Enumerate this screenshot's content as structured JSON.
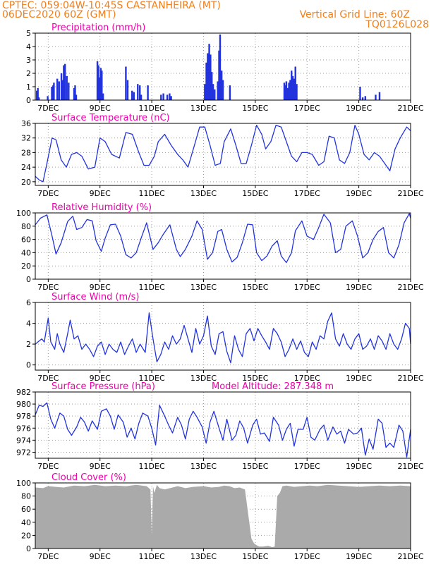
{
  "header": {
    "line1": "CPTEC:   059:04W-10:45S   CASTANHEIRA (MT)",
    "line2": "06DEC2020 60Z (GMT)",
    "grid_note": "Vertical Grid Line: 60Z",
    "run_id": "TQ0126L028"
  },
  "colors": {
    "header": "#f07f1e",
    "title": "#ee00aa",
    "line": "#2233dd",
    "bar": "#2233dd",
    "cloud": "#aaaaaa"
  },
  "chart_data": [
    {
      "type": "bar",
      "title": "Precipitation (mm/h)",
      "x_range": [
        6.5,
        21.0
      ],
      "ylim": [
        0,
        5
      ],
      "yticks": [
        0,
        1,
        2,
        3,
        4,
        5
      ],
      "xticks": [
        7,
        9,
        11,
        13,
        15,
        17,
        19,
        21
      ],
      "xtick_labels": [
        "7DEC",
        "9DEC",
        "11DEC",
        "13DEC",
        "15DEC",
        "17DEC",
        "19DEC",
        "21DEC"
      ],
      "grid": true,
      "x": [
        6.56,
        6.6,
        6.64,
        6.98,
        7.14,
        7.19,
        7.22,
        7.35,
        7.42,
        7.51,
        7.56,
        7.6,
        7.65,
        7.72,
        7.79,
        8.0,
        8.04,
        8.08,
        8.9,
        8.94,
        8.99,
        9.03,
        9.07,
        9.12,
        10.0,
        10.07,
        10.24,
        10.31,
        10.46,
        10.54,
        10.59,
        10.85,
        11.36,
        11.45,
        11.6,
        11.69,
        11.75,
        13.05,
        13.11,
        13.16,
        13.22,
        13.27,
        13.32,
        13.37,
        13.43,
        13.55,
        13.6,
        13.64,
        13.7,
        13.75,
        14.02,
        16.12,
        16.17,
        16.2,
        16.25,
        16.3,
        16.35,
        16.4,
        16.45,
        16.5,
        16.55,
        16.6,
        19.05,
        19.15,
        19.25,
        19.65,
        19.8
      ],
      "values": [
        0.7,
        0.9,
        0.2,
        0.3,
        1.0,
        1.1,
        1.3,
        1.6,
        1.4,
        2.0,
        1.5,
        2.6,
        2.7,
        1.8,
        1.3,
        0.9,
        1.1,
        0.4,
        2.9,
        2.6,
        1.7,
        2.4,
        2.2,
        0.5,
        2.5,
        1.5,
        0.7,
        0.6,
        1.2,
        1.1,
        0.4,
        1.1,
        0.4,
        0.5,
        0.4,
        0.5,
        0.3,
        1.2,
        2.8,
        3.5,
        4.2,
        3.4,
        2.1,
        1.2,
        0.8,
        1.4,
        3.7,
        4.9,
        2.2,
        1.5,
        1.1,
        1.3,
        1.1,
        1.4,
        0.9,
        1.3,
        1.5,
        2.2,
        1.8,
        1.6,
        2.5,
        1.2,
        1.0,
        0.2,
        0.3,
        0.4,
        0.6
      ]
    },
    {
      "type": "line",
      "title": "Surface Temperature (nC)",
      "x_range": [
        6.5,
        21.0
      ],
      "ylim": [
        19,
        36
      ],
      "yticks": [
        20,
        24,
        28,
        32,
        36
      ],
      "xticks": [
        7,
        9,
        11,
        13,
        15,
        17,
        19,
        21
      ],
      "xtick_labels": [
        "7DEC",
        "9DEC",
        "11DEC",
        "13DEC",
        "15DEC",
        "17DEC",
        "19DEC",
        "21DEC"
      ],
      "grid": true,
      "x": [
        6.5,
        6.65,
        6.8,
        6.95,
        7.15,
        7.3,
        7.5,
        7.7,
        7.9,
        8.1,
        8.3,
        8.55,
        8.8,
        9.0,
        9.2,
        9.45,
        9.75,
        10.0,
        10.25,
        10.5,
        10.7,
        10.9,
        11.1,
        11.25,
        11.5,
        11.75,
        12.0,
        12.2,
        12.4,
        12.65,
        12.85,
        13.05,
        13.25,
        13.45,
        13.65,
        13.8,
        14.05,
        14.25,
        14.45,
        14.65,
        14.85,
        15.05,
        15.25,
        15.4,
        15.6,
        15.8,
        16.0,
        16.2,
        16.4,
        16.6,
        16.8,
        17.0,
        17.2,
        17.45,
        17.65,
        17.85,
        18.05,
        18.25,
        18.45,
        18.65,
        18.85,
        19.0,
        19.2,
        19.4,
        19.6,
        19.8,
        20.0,
        20.2,
        20.4,
        20.6,
        20.85,
        21.0
      ],
      "values": [
        21.5,
        20.5,
        20.0,
        25.0,
        32.0,
        31.5,
        26.0,
        24.0,
        27.5,
        28.0,
        27.0,
        23.5,
        24.0,
        32.0,
        31.0,
        27.5,
        26.5,
        33.5,
        33.0,
        28.0,
        24.5,
        24.5,
        27.0,
        31.0,
        33.0,
        30.0,
        27.5,
        26.0,
        24.0,
        30.0,
        35.0,
        35.0,
        30.0,
        24.5,
        25.0,
        31.0,
        34.5,
        30.0,
        25.0,
        25.0,
        30.0,
        35.5,
        33.0,
        29.0,
        31.0,
        35.5,
        35.0,
        31.0,
        27.0,
        25.5,
        28.0,
        28.0,
        27.5,
        24.5,
        25.5,
        32.5,
        32.0,
        26.0,
        25.0,
        28.0,
        35.5,
        33.0,
        27.5,
        26.0,
        28.0,
        27.0,
        25.0,
        23.0,
        29.0,
        32.0,
        35.0,
        34.0
      ]
    },
    {
      "type": "line",
      "title": "Relative Humidity (%)",
      "x_range": [
        6.5,
        21.0
      ],
      "ylim": [
        0,
        100
      ],
      "yticks": [
        0,
        20,
        40,
        60,
        80,
        100
      ],
      "xticks": [
        7,
        9,
        11,
        13,
        15,
        17,
        19,
        21
      ],
      "xtick_labels": [
        "7DEC",
        "9DEC",
        "11DEC",
        "13DEC",
        "15DEC",
        "17DEC",
        "19DEC",
        "21DEC"
      ],
      "grid": true,
      "x": [
        6.5,
        6.7,
        6.95,
        7.15,
        7.3,
        7.5,
        7.75,
        7.95,
        8.1,
        8.3,
        8.5,
        8.7,
        8.85,
        9.05,
        9.2,
        9.4,
        9.6,
        9.8,
        10.0,
        10.2,
        10.4,
        10.6,
        10.8,
        11.05,
        11.25,
        11.45,
        11.7,
        11.95,
        12.1,
        12.3,
        12.55,
        12.75,
        12.95,
        13.15,
        13.35,
        13.55,
        13.7,
        13.9,
        14.1,
        14.3,
        14.5,
        14.7,
        14.9,
        15.05,
        15.25,
        15.45,
        15.65,
        15.85,
        16.0,
        16.2,
        16.4,
        16.55,
        16.8,
        17.0,
        17.25,
        17.45,
        17.65,
        17.9,
        18.1,
        18.3,
        18.5,
        18.75,
        18.95,
        19.15,
        19.35,
        19.55,
        19.75,
        19.95,
        20.15,
        20.35,
        20.55,
        20.75,
        20.95,
        21.0
      ],
      "values": [
        82,
        92,
        97,
        65,
        38,
        55,
        87,
        95,
        75,
        78,
        90,
        88,
        58,
        42,
        62,
        82,
        83,
        65,
        37,
        32,
        40,
        63,
        85,
        45,
        55,
        68,
        82,
        45,
        34,
        45,
        65,
        88,
        75,
        30,
        40,
        72,
        75,
        45,
        26,
        33,
        55,
        83,
        82,
        40,
        28,
        35,
        50,
        58,
        35,
        25,
        40,
        73,
        88,
        65,
        60,
        78,
        98,
        85,
        40,
        45,
        80,
        88,
        65,
        32,
        40,
        60,
        72,
        78,
        40,
        32,
        52,
        85,
        99,
        92
      ]
    },
    {
      "type": "line",
      "title": "Surface Wind (m/s)",
      "x_range": [
        6.5,
        21.0
      ],
      "ylim": [
        -0.5,
        6
      ],
      "yticks": [
        0,
        2,
        4,
        6
      ],
      "xticks": [
        7,
        9,
        11,
        13,
        15,
        17,
        19,
        21
      ],
      "xtick_labels": [
        "7DEC",
        "9DEC",
        "11DEC",
        "13DEC",
        "15DEC",
        "17DEC",
        "19DEC",
        "21DEC"
      ],
      "grid": true,
      "x": [
        6.5,
        6.65,
        6.75,
        6.85,
        7.0,
        7.1,
        7.25,
        7.35,
        7.45,
        7.6,
        7.75,
        7.85,
        8.0,
        8.15,
        8.3,
        8.45,
        8.6,
        8.75,
        8.9,
        9.05,
        9.2,
        9.35,
        9.5,
        9.65,
        9.8,
        9.95,
        10.1,
        10.25,
        10.4,
        10.55,
        10.75,
        10.9,
        11.05,
        11.2,
        11.35,
        11.5,
        11.65,
        11.8,
        11.95,
        12.1,
        12.25,
        12.4,
        12.55,
        12.7,
        12.85,
        13.0,
        13.15,
        13.3,
        13.45,
        13.6,
        13.75,
        13.9,
        14.05,
        14.2,
        14.35,
        14.5,
        14.65,
        14.8,
        14.95,
        15.1,
        15.25,
        15.4,
        15.55,
        15.7,
        15.85,
        16.0,
        16.15,
        16.3,
        16.45,
        16.6,
        16.75,
        16.9,
        17.05,
        17.2,
        17.35,
        17.5,
        17.65,
        17.8,
        17.95,
        18.1,
        18.25,
        18.4,
        18.55,
        18.7,
        18.85,
        19.0,
        19.15,
        19.3,
        19.45,
        19.6,
        19.75,
        19.9,
        20.05,
        20.2,
        20.35,
        20.5,
        20.65,
        20.8,
        20.95,
        21.0
      ],
      "values": [
        2.0,
        2.3,
        2.5,
        2.2,
        4.5,
        2.2,
        1.5,
        3.0,
        2.0,
        1.2,
        3.0,
        4.3,
        2.5,
        2.8,
        1.5,
        2.0,
        1.5,
        0.8,
        1.8,
        2.2,
        1.0,
        2.0,
        1.5,
        1.2,
        2.2,
        1.0,
        1.8,
        2.5,
        1.2,
        2.0,
        1.2,
        5.0,
        2.5,
        0.3,
        1.0,
        2.2,
        1.5,
        2.8,
        2.0,
        2.5,
        3.8,
        2.5,
        1.2,
        3.5,
        2.0,
        2.8,
        4.7,
        1.8,
        1.0,
        3.0,
        3.2,
        1.3,
        0.2,
        2.8,
        1.5,
        0.8,
        3.0,
        3.5,
        2.3,
        3.5,
        2.8,
        2.2,
        1.5,
        3.5,
        3.0,
        2.2,
        0.8,
        1.5,
        2.5,
        1.5,
        2.3,
        1.2,
        0.8,
        2.2,
        1.5,
        2.8,
        2.5,
        4.2,
        5.0,
        2.5,
        1.8,
        3.0,
        2.0,
        1.5,
        2.5,
        3.0,
        1.5,
        1.8,
        2.5,
        1.5,
        2.8,
        2.3,
        1.5,
        3.0,
        2.0,
        1.5,
        2.5,
        4.0,
        3.5,
        2.0
      ]
    },
    {
      "type": "line",
      "title": "Surface Pressure (hPa)",
      "annotation": "Model Altitude: 287.348 m",
      "x_range": [
        6.5,
        21.0
      ],
      "ylim": [
        971,
        982
      ],
      "yticks": [
        972,
        974,
        976,
        978,
        980,
        982
      ],
      "xticks": [
        7,
        9,
        11,
        13,
        15,
        17,
        19,
        21
      ],
      "xtick_labels": [
        "7DEC",
        "9DEC",
        "11DEC",
        "13DEC",
        "15DEC",
        "17DEC",
        "19DEC",
        "21DEC"
      ],
      "grid": true,
      "x": [
        6.5,
        6.65,
        6.8,
        6.95,
        7.1,
        7.25,
        7.45,
        7.6,
        7.75,
        7.9,
        8.1,
        8.25,
        8.4,
        8.55,
        8.7,
        8.9,
        9.05,
        9.25,
        9.4,
        9.55,
        9.7,
        9.9,
        10.05,
        10.2,
        10.35,
        10.5,
        10.65,
        10.85,
        11.0,
        11.15,
        11.3,
        11.5,
        11.65,
        11.8,
        12.0,
        12.15,
        12.3,
        12.45,
        12.6,
        12.75,
        12.95,
        13.1,
        13.25,
        13.4,
        13.6,
        13.75,
        13.9,
        14.1,
        14.25,
        14.4,
        14.55,
        14.7,
        14.9,
        15.05,
        15.2,
        15.35,
        15.55,
        15.7,
        15.9,
        16.05,
        16.2,
        16.35,
        16.5,
        16.65,
        16.85,
        17.0,
        17.15,
        17.3,
        17.5,
        17.65,
        17.8,
        18.0,
        18.15,
        18.3,
        18.45,
        18.6,
        18.8,
        18.95,
        19.1,
        19.25,
        19.4,
        19.55,
        19.75,
        19.9,
        20.05,
        20.2,
        20.35,
        20.55,
        20.7,
        20.85,
        21.0
      ],
      "values": [
        978.2,
        979.8,
        979.6,
        980.2,
        977.5,
        976.0,
        978.5,
        978.0,
        975.8,
        974.8,
        976.2,
        977.8,
        977.0,
        975.5,
        977.2,
        975.8,
        978.8,
        979.2,
        978.0,
        975.8,
        978.2,
        977.0,
        974.5,
        976.0,
        974.2,
        976.8,
        978.5,
        978.0,
        976.0,
        973.2,
        979.8,
        978.0,
        976.5,
        975.2,
        977.8,
        976.5,
        974.2,
        977.5,
        978.8,
        977.8,
        976.2,
        973.5,
        977.0,
        978.8,
        976.0,
        974.0,
        977.5,
        974.0,
        974.8,
        977.2,
        976.0,
        973.5,
        976.5,
        977.5,
        975.0,
        975.2,
        973.8,
        977.8,
        976.5,
        974.0,
        975.8,
        976.8,
        973.0,
        975.8,
        975.8,
        977.8,
        974.5,
        974.0,
        975.8,
        976.5,
        974.0,
        976.2,
        975.0,
        975.5,
        973.5,
        975.8,
        975.0,
        975.2,
        976.0,
        971.5,
        974.2,
        972.5,
        977.5,
        976.8,
        972.8,
        973.5,
        972.8,
        976.5,
        975.5,
        971.2,
        975.8
      ]
    },
    {
      "type": "area",
      "title": "Cloud Cover (%)",
      "x_range": [
        6.5,
        21.0
      ],
      "ylim": [
        0,
        100
      ],
      "yticks": [
        0,
        20,
        40,
        60,
        80,
        100
      ],
      "xticks": [
        7,
        9,
        11,
        13,
        15,
        17,
        19,
        21
      ],
      "xtick_labels": [
        "7DEC",
        "9DEC",
        "11DEC",
        "13DEC",
        "15DEC",
        "17DEC",
        "19DEC",
        "21DEC"
      ],
      "grid": true,
      "x": [
        6.5,
        6.8,
        7.0,
        7.3,
        7.6,
        8.0,
        8.4,
        8.8,
        9.2,
        9.6,
        10.0,
        10.4,
        10.8,
        10.95,
        11.0,
        11.05,
        11.1,
        11.2,
        11.3,
        11.5,
        11.8,
        12.0,
        12.3,
        12.6,
        13.0,
        13.3,
        13.6,
        13.8,
        14.0,
        14.2,
        14.4,
        14.6,
        14.75,
        14.85,
        14.95,
        15.05,
        15.15,
        15.3,
        15.5,
        15.65,
        15.75,
        15.85,
        15.95,
        16.05,
        16.2,
        16.5,
        16.8,
        17.1,
        17.4,
        17.8,
        18.2,
        18.6,
        19.0,
        19.4,
        19.8,
        20.2,
        20.6,
        21.0
      ],
      "values": [
        93,
        92,
        95,
        94,
        93,
        96,
        95,
        97,
        95,
        96,
        95,
        97,
        95,
        90,
        20,
        95,
        85,
        97,
        92,
        90,
        93,
        95,
        92,
        94,
        95,
        93,
        94,
        96,
        95,
        92,
        93,
        90,
        45,
        15,
        8,
        5,
        3,
        3,
        4,
        2,
        3,
        80,
        85,
        95,
        96,
        94,
        95,
        96,
        95,
        97,
        96,
        95,
        94,
        95,
        96,
        95,
        96,
        95
      ]
    }
  ]
}
